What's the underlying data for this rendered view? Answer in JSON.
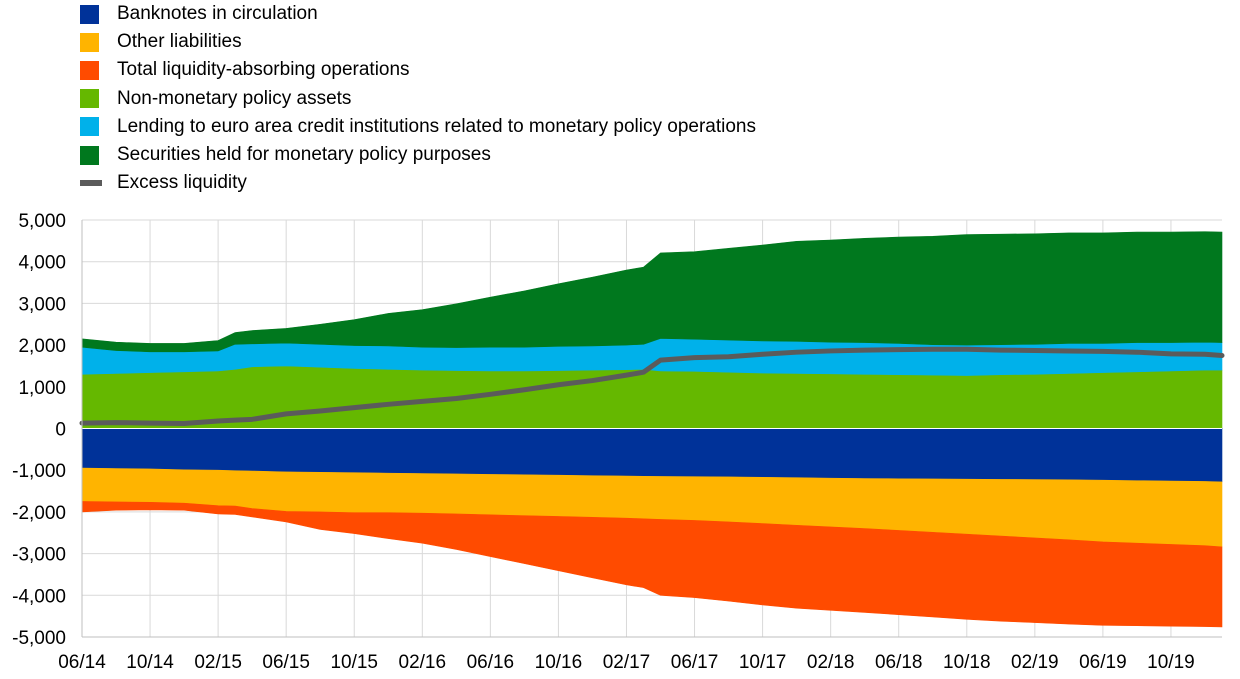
{
  "chart_data": {
    "type": "area",
    "units_note": "",
    "x_ticks": [
      "06/14",
      "10/14",
      "02/15",
      "06/15",
      "10/15",
      "02/16",
      "06/16",
      "10/16",
      "02/17",
      "06/17",
      "10/17",
      "02/18",
      "06/18",
      "10/18",
      "02/19",
      "06/19",
      "10/19"
    ],
    "x_range": [
      "2014-06",
      "2020-01"
    ],
    "ylim": [
      -5000,
      5000
    ],
    "y_ticks": [
      "5,000",
      "4,000",
      "3,000",
      "2,000",
      "1,000",
      "0",
      "-1,000",
      "-2,000",
      "-3,000",
      "-4,000",
      "-5,000"
    ],
    "grid": true,
    "legend_position": "top-left",
    "x": [
      "2014-06",
      "2014-08",
      "2014-10",
      "2014-12",
      "2015-02",
      "2015-03",
      "2015-04",
      "2015-06",
      "2015-08",
      "2015-10",
      "2015-12",
      "2016-02",
      "2016-04",
      "2016-06",
      "2016-08",
      "2016-10",
      "2016-12",
      "2017-02",
      "2017-03",
      "2017-04",
      "2017-06",
      "2017-08",
      "2017-10",
      "2017-12",
      "2018-02",
      "2018-04",
      "2018-06",
      "2018-08",
      "2018-10",
      "2018-12",
      "2019-02",
      "2019-04",
      "2019-06",
      "2019-08",
      "2019-10",
      "2019-12",
      "2020-01"
    ],
    "positive_series": [
      {
        "name": "Non-monetary policy assets",
        "color": "#65b800",
        "values": [
          1300,
          1320,
          1340,
          1360,
          1380,
          1420,
          1480,
          1500,
          1470,
          1440,
          1420,
          1400,
          1390,
          1380,
          1380,
          1390,
          1400,
          1410,
          1420,
          1380,
          1370,
          1350,
          1330,
          1320,
          1310,
          1300,
          1290,
          1280,
          1270,
          1290,
          1300,
          1320,
          1340,
          1360,
          1380,
          1400,
          1400
        ]
      },
      {
        "name": "Lending to euro area credit institutions related to monetary policy operations",
        "color": "#00b1ea",
        "values": [
          650,
          550,
          500,
          480,
          480,
          600,
          550,
          550,
          550,
          550,
          560,
          550,
          550,
          570,
          570,
          580,
          580,
          590,
          600,
          780,
          770,
          770,
          770,
          770,
          760,
          760,
          750,
          730,
          730,
          720,
          720,
          720,
          700,
          700,
          680,
          670,
          660
        ]
      },
      {
        "name": "Securities held for monetary policy purposes",
        "color": "#00781e",
        "values": [
          200,
          200,
          200,
          200,
          250,
          280,
          320,
          350,
          480,
          620,
          780,
          900,
          1050,
          1200,
          1350,
          1500,
          1650,
          1800,
          1850,
          2050,
          2100,
          2200,
          2300,
          2400,
          2450,
          2500,
          2550,
          2600,
          2650,
          2650,
          2650,
          2650,
          2650,
          2650,
          2650,
          2650,
          2650
        ]
      }
    ],
    "negative_series": [
      {
        "name": "Banknotes in circulation",
        "color": "#003299",
        "values": [
          -950,
          -960,
          -970,
          -990,
          -1000,
          -1010,
          -1020,
          -1040,
          -1050,
          -1060,
          -1070,
          -1080,
          -1090,
          -1100,
          -1110,
          -1120,
          -1130,
          -1140,
          -1145,
          -1150,
          -1155,
          -1160,
          -1170,
          -1180,
          -1190,
          -1200,
          -1205,
          -1210,
          -1215,
          -1220,
          -1225,
          -1230,
          -1240,
          -1250,
          -1260,
          -1270,
          -1280
        ]
      },
      {
        "name": "Other liabilities",
        "color": "#ffb400",
        "values": [
          -800,
          -800,
          -800,
          -800,
          -850,
          -850,
          -900,
          -950,
          -950,
          -960,
          -950,
          -950,
          -960,
          -970,
          -980,
          -990,
          -1000,
          -1010,
          -1020,
          -1030,
          -1050,
          -1080,
          -1110,
          -1140,
          -1170,
          -1200,
          -1240,
          -1280,
          -1320,
          -1360,
          -1400,
          -1440,
          -1480,
          -1500,
          -1520,
          -1540,
          -1560
        ]
      },
      {
        "name": "Total liquidity-absorbing operations",
        "color": "#ff4b00",
        "values": [
          -250,
          -200,
          -180,
          -170,
          -200,
          -200,
          -200,
          -250,
          -420,
          -500,
          -620,
          -720,
          -850,
          -1000,
          -1150,
          -1300,
          -1450,
          -1600,
          -1650,
          -1820,
          -1850,
          -1900,
          -1950,
          -1990,
          -2000,
          -2010,
          -2020,
          -2030,
          -2040,
          -2040,
          -2030,
          -2020,
          -2000,
          -1980,
          -1960,
          -1940,
          -1920
        ]
      }
    ],
    "line_series": {
      "name": "Excess liquidity",
      "color": "#5b5b5b",
      "values": [
        130,
        140,
        130,
        120,
        180,
        200,
        220,
        350,
        420,
        500,
        580,
        650,
        720,
        820,
        930,
        1050,
        1150,
        1280,
        1350,
        1640,
        1700,
        1720,
        1780,
        1830,
        1860,
        1880,
        1890,
        1900,
        1900,
        1880,
        1870,
        1860,
        1850,
        1830,
        1790,
        1780,
        1750
      ]
    }
  },
  "legend": [
    {
      "label": "Banknotes in circulation",
      "color": "#003299",
      "kind": "box"
    },
    {
      "label": "Other liabilities",
      "color": "#ffb400",
      "kind": "box"
    },
    {
      "label": "Total liquidity-absorbing operations",
      "color": "#ff4b00",
      "kind": "box"
    },
    {
      "label": "Non-monetary policy assets",
      "color": "#65b800",
      "kind": "box"
    },
    {
      "label": "Lending to euro area credit institutions related to monetary policy operations",
      "color": "#00b1ea",
      "kind": "box"
    },
    {
      "label": "Securities held for monetary policy purposes",
      "color": "#00781e",
      "kind": "box"
    },
    {
      "label": "Excess liquidity",
      "color": "#5b5b5b",
      "kind": "line"
    }
  ]
}
